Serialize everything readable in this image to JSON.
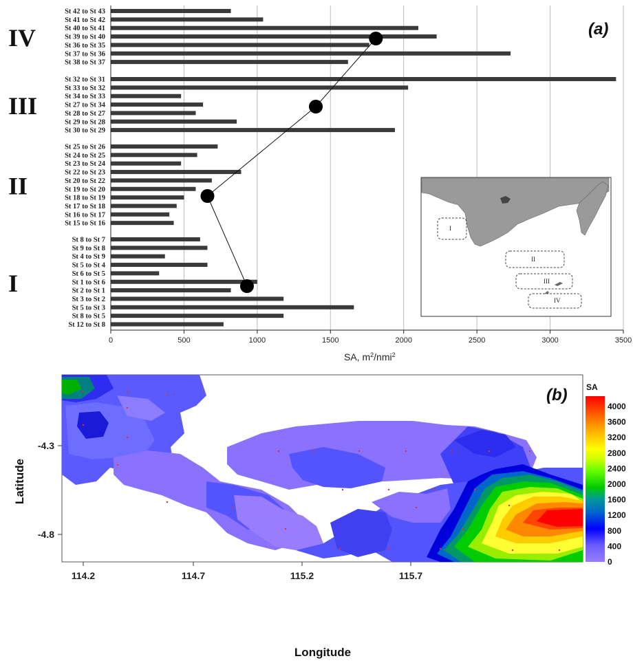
{
  "chart_data": [
    {
      "type": "bar",
      "panel_label": "(a)",
      "orientation": "horizontal",
      "xlabel": "SA, m",
      "xlabel_sup": "2",
      "xlabel_mid": "/nmi",
      "xlabel_sup2": "2",
      "xlim": [
        0,
        3500
      ],
      "xticks": [
        "0",
        "500",
        "1000",
        "1500",
        "2000",
        "2500",
        "3000",
        "3500"
      ],
      "grid": true,
      "groups": [
        {
          "label": "IV",
          "mean": 1810,
          "categories": [
            "St 42 to St 43",
            "St 41 to St 42",
            "St 40 to St 41",
            "St 39 to St 40",
            "St 36 to St 35",
            "St 37 to St 36",
            "St 38 to St 37"
          ],
          "values": [
            820,
            1040,
            2100,
            2225,
            1765,
            2730,
            1620
          ]
        },
        {
          "label": "III",
          "mean": 1400,
          "categories": [
            "St 32 to St 31",
            "St 33 to St 32",
            "St 34 to St 33",
            "St 27 to St 34",
            "St 28 to St 27",
            "St 29 to St 28",
            "St 30 to St 29"
          ],
          "values": [
            3450,
            2030,
            480,
            630,
            580,
            860,
            1940
          ]
        },
        {
          "label": "II",
          "mean": 660,
          "categories": [
            "St 25 to St 26",
            "St 24 to St 25",
            "St 23 to St 24",
            "St 22 to St 23",
            "St 20 to St 22",
            "St 19 to St 20",
            "St 18 to St 19",
            "St 17 to St 18",
            "St 16 to St 17",
            "St 15 to St 16"
          ],
          "values": [
            730,
            590,
            480,
            890,
            690,
            580,
            500,
            450,
            400,
            430
          ]
        },
        {
          "label": "I",
          "mean": 930,
          "categories": [
            "St 8 to St 7",
            "St 9 to St 8",
            "St 4 to St 9",
            "St 5 to St 4",
            "St 6 to St 5",
            "St 1 to St 6",
            "St 2 to St 1",
            "St 3 to St 2",
            "St 5 to St 3",
            "St 8 to St 5",
            "St 12 to St 8"
          ],
          "values": [
            610,
            660,
            370,
            660,
            330,
            1000,
            820,
            1180,
            1660,
            1180,
            770
          ]
        }
      ],
      "inset": {
        "regions": [
          "I",
          "II",
          "III",
          "IV"
        ],
        "land_color": "#9a9a9a"
      }
    },
    {
      "type": "heatmap",
      "panel_label": "(b)",
      "xlabel": "Longitude",
      "ylabel": "Latitude",
      "xticks": [
        "114.2",
        "114.7",
        "115.2",
        "115.7"
      ],
      "yticks": [
        "-4.3",
        "-4.8"
      ],
      "colorbar_title": "SA",
      "colorbar_ticks": [
        "4000",
        "3600",
        "3200",
        "2800",
        "2400",
        "2000",
        "1600",
        "1200",
        "800",
        "400",
        "0"
      ],
      "colorbar_colors": [
        "#ff0000",
        "#ff3300",
        "#ff6600",
        "#ff9933",
        "#ffcc00",
        "#ffff33",
        "#99ff00",
        "#33dd00",
        "#009966",
        "#0066cc",
        "#0000ff",
        "#4444ff",
        "#9a6cff"
      ]
    }
  ]
}
